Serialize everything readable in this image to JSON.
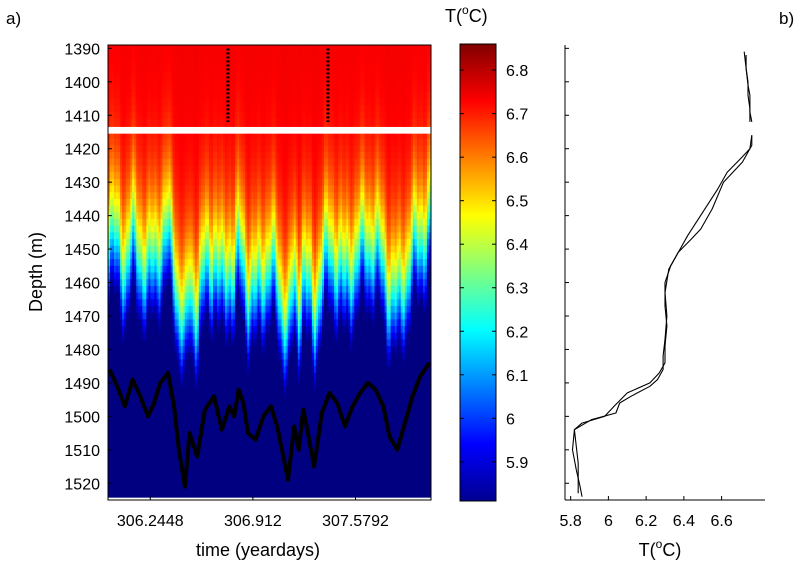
{
  "panels": {
    "a_label": "a)",
    "b_label": "b)"
  },
  "chart_data": [
    {
      "type": "heatmap",
      "panel": "a)",
      "xlabel": "time (yeardays)",
      "ylabel": "Depth (m)",
      "x_ticks": [
        "306.2448",
        "306.912",
        "307.5792"
      ],
      "x_tick_values": [
        306.2448,
        306.912,
        307.5792
      ],
      "xlim": [
        305.97,
        308.07
      ],
      "y_ticks": [
        "1390",
        "1400",
        "1410",
        "1420",
        "1430",
        "1440",
        "1450",
        "1460",
        "1470",
        "1480",
        "1490",
        "1500",
        "1510",
        "1520"
      ],
      "y_tick_values": [
        1390,
        1400,
        1410,
        1420,
        1430,
        1440,
        1450,
        1460,
        1470,
        1480,
        1490,
        1500,
        1510,
        1520
      ],
      "ylim": [
        1389,
        1525
      ],
      "reversed_y": true,
      "data_gap_depth": [
        1413.5,
        1415.5
      ],
      "vertical_markers": [
        {
          "x": 306.75,
          "depth": [
            1390,
            1412
          ]
        },
        {
          "x": 307.4,
          "depth": [
            1390,
            1412
          ]
        }
      ],
      "isotherm_line": {
        "x": [
          305.98,
          306.03,
          306.08,
          306.13,
          306.18,
          306.23,
          306.27,
          306.31,
          306.36,
          306.4,
          306.43,
          306.47,
          306.5,
          306.55,
          306.6,
          306.66,
          306.71,
          306.76,
          306.79,
          306.82,
          306.85,
          306.88,
          306.93,
          306.98,
          307.03,
          307.07,
          307.11,
          307.14,
          307.18,
          307.21,
          307.24,
          307.27,
          307.31,
          307.36,
          307.41,
          307.46,
          307.51,
          307.56,
          307.61,
          307.66,
          307.71,
          307.76,
          307.8,
          307.85,
          307.9,
          307.95,
          308.0,
          308.06
        ],
        "depth": [
          1486,
          1491,
          1497,
          1489,
          1494,
          1500,
          1496,
          1490,
          1487,
          1497,
          1510,
          1521,
          1505,
          1512,
          1498,
          1494,
          1504,
          1497,
          1500,
          1492,
          1496,
          1505,
          1507,
          1500,
          1497,
          1503,
          1512,
          1519,
          1503,
          1510,
          1498,
          1505,
          1515,
          1499,
          1493,
          1496,
          1503,
          1497,
          1493,
          1490,
          1492,
          1497,
          1506,
          1510,
          1502,
          1494,
          1488,
          1484
        ]
      },
      "colorbar": {
        "title": "T(oC)",
        "title_base": "T(",
        "title_sup": "o",
        "title_end": "C)",
        "ticks": [
          "5.9",
          "6",
          "6.1",
          "6.2",
          "6.3",
          "6.4",
          "6.5",
          "6.6",
          "6.7",
          "6.8"
        ],
        "tick_values": [
          5.9,
          6.0,
          6.1,
          6.2,
          6.3,
          6.4,
          6.5,
          6.6,
          6.7,
          6.8
        ],
        "range": [
          5.81,
          6.86
        ],
        "colormap": "jet"
      },
      "colors": {
        "warm": "#ff0000",
        "cold": "#0a3fb4",
        "line": "#000000"
      }
    },
    {
      "type": "line",
      "panel": "b)",
      "xlabel": "T(oC)",
      "xlabel_base": "T(",
      "xlabel_sup": "o",
      "xlabel_end": "C)",
      "x_ticks": [
        "5.8",
        "6",
        "6.2",
        "6.4",
        "6.6"
      ],
      "x_tick_values": [
        5.8,
        6.0,
        6.2,
        6.4,
        6.6
      ],
      "xlim": [
        5.77,
        6.83
      ],
      "ylim": [
        1389,
        1525
      ],
      "reversed_y": true,
      "shared_y_with": "a)",
      "series": [
        {
          "temperature": [
            6.72,
            6.73,
            6.74,
            6.74,
            6.75,
            6.75,
            null,
            6.76,
            6.76,
            6.74,
            6.71,
            6.61,
            6.55,
            6.49,
            6.44,
            6.37,
            6.32,
            6.3,
            6.31,
            6.3,
            6.29,
            6.29,
            6.26,
            6.22,
            6.12,
            6.06,
            6.04,
            5.91,
            5.82,
            5.81,
            5.83,
            5.85,
            5.86
          ],
          "depth": [
            1391,
            1396,
            1400,
            1404,
            1408,
            1412,
            null,
            1416,
            1419,
            1421,
            1424,
            1430,
            1438,
            1444,
            1447,
            1451,
            1456,
            1463,
            1470,
            1477,
            1482,
            1486,
            1489,
            1491,
            1494,
            1496,
            1499,
            1501,
            1504,
            1510,
            1516,
            1521,
            1524
          ]
        },
        {
          "temperature": [
            6.73,
            6.73,
            6.74,
            6.75,
            6.75,
            6.76,
            null,
            6.76,
            6.75,
            6.7,
            6.63,
            6.58,
            6.5,
            6.42,
            6.38,
            6.33,
            6.3,
            6.3,
            6.31,
            6.3,
            6.3,
            6.27,
            6.22,
            6.1,
            6.03,
            5.98,
            5.86,
            5.82,
            5.83,
            5.84,
            5.84,
            5.84
          ],
          "depth": [
            1392,
            1396,
            1401,
            1404,
            1409,
            1412,
            null,
            1416,
            1420,
            1423,
            1427,
            1432,
            1439,
            1446,
            1450,
            1455,
            1460,
            1467,
            1473,
            1479,
            1484,
            1487,
            1490,
            1493,
            1497,
            1500,
            1502,
            1504,
            1509,
            1514,
            1519,
            1523
          ]
        }
      ]
    }
  ]
}
